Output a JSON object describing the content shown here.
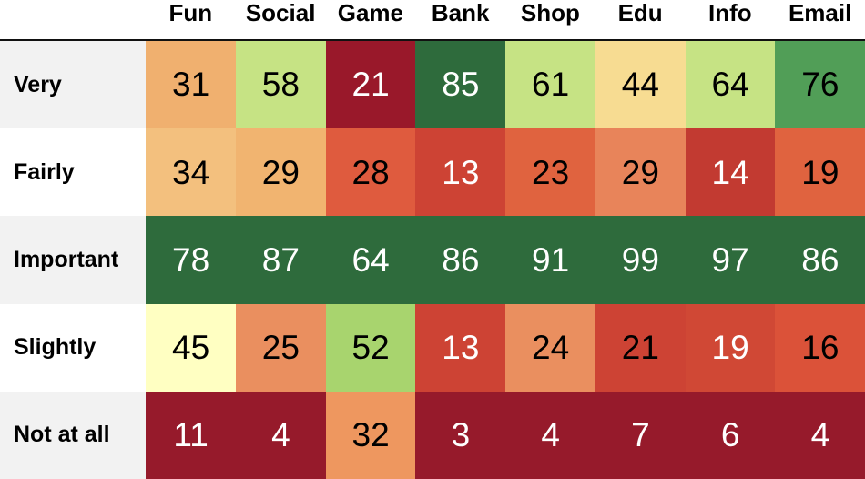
{
  "chart_data": {
    "type": "heatmap",
    "title": "",
    "columns": [
      "Fun",
      "Social",
      "Game",
      "Bank",
      "Shop",
      "Edu",
      "Info",
      "Email"
    ],
    "rows": [
      "Very",
      "Fairly",
      "Important",
      "Slightly",
      "Not at all"
    ],
    "values": [
      [
        31,
        58,
        21,
        85,
        61,
        44,
        64,
        76
      ],
      [
        34,
        29,
        28,
        13,
        23,
        29,
        14,
        19
      ],
      [
        78,
        87,
        64,
        86,
        91,
        99,
        97,
        86
      ],
      [
        45,
        25,
        52,
        13,
        24,
        21,
        19,
        16
      ],
      [
        11,
        4,
        32,
        3,
        4,
        7,
        6,
        4
      ]
    ],
    "cell_colors": [
      [
        "#f0b06f",
        "#c6e384",
        "#99182a",
        "#2e6b3c",
        "#c6e384",
        "#f7dc92",
        "#c6e384",
        "#519e57"
      ],
      [
        "#f3c07e",
        "#f1b470",
        "#df5b3e",
        "#cd4334",
        "#e0633f",
        "#e8845a",
        "#c23a31",
        "#e0633f"
      ],
      [
        "#2e6b3c",
        "#2e6b3c",
        "#2e6b3c",
        "#2e6b3c",
        "#2e6b3c",
        "#2e6b3c",
        "#2e6b3c",
        "#2e6b3c"
      ],
      [
        "#ffffc2",
        "#ea8f5f",
        "#a8d46e",
        "#cd4334",
        "#ea8f5f",
        "#cd4334",
        "#d04835",
        "#db5239"
      ],
      [
        "#961a2b",
        "#961a2b",
        "#ee975f",
        "#961a2b",
        "#961a2b",
        "#961a2b",
        "#961a2b",
        "#961a2b"
      ]
    ],
    "text_colors": [
      [
        "#000000",
        "#000000",
        "#ffffff",
        "#ffffff",
        "#000000",
        "#000000",
        "#000000",
        "#000000"
      ],
      [
        "#000000",
        "#000000",
        "#000000",
        "#ffffff",
        "#000000",
        "#000000",
        "#ffffff",
        "#000000"
      ],
      [
        "#ffffff",
        "#ffffff",
        "#ffffff",
        "#ffffff",
        "#ffffff",
        "#ffffff",
        "#ffffff",
        "#ffffff"
      ],
      [
        "#000000",
        "#000000",
        "#000000",
        "#ffffff",
        "#000000",
        "#000000",
        "#ffffff",
        "#000000"
      ],
      [
        "#ffffff",
        "#ffffff",
        "#000000",
        "#ffffff",
        "#ffffff",
        "#ffffff",
        "#ffffff",
        "#ffffff"
      ]
    ],
    "row_label_background": "#f2f2f2",
    "header_rule_color": "#111111"
  }
}
